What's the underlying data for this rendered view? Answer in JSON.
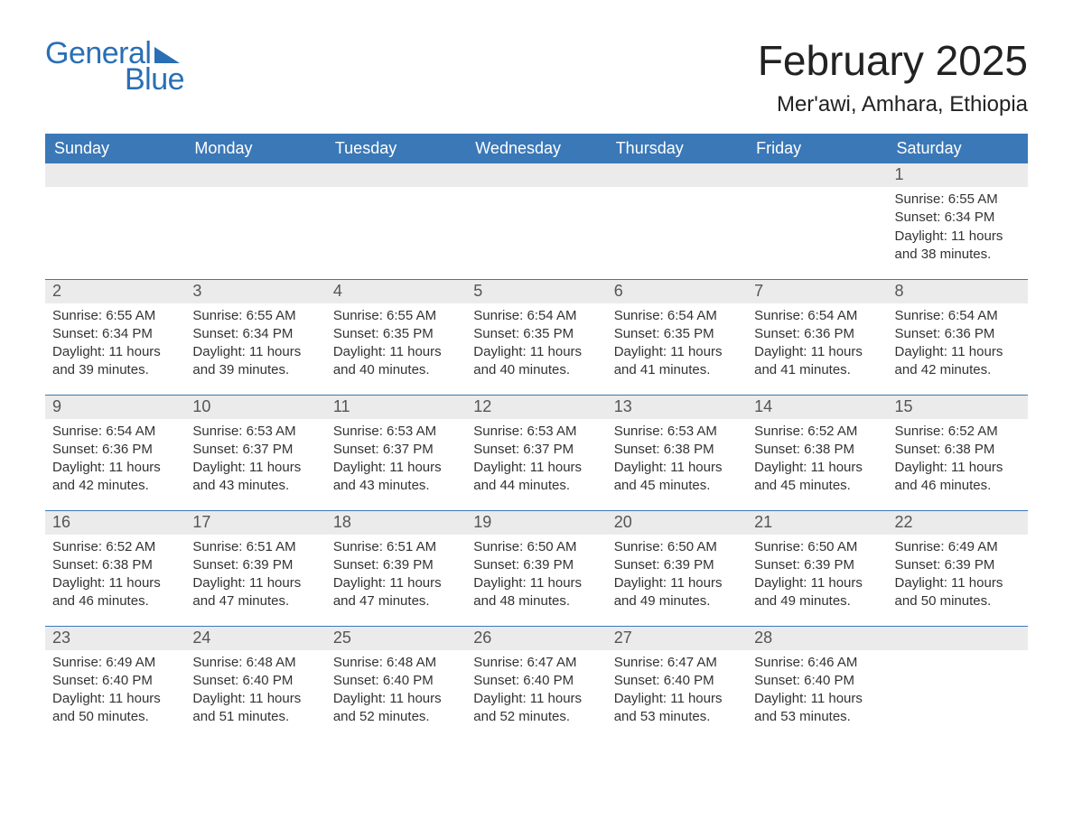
{
  "type": "calendar-table",
  "logo": {
    "text1": "General",
    "text2": "Blue",
    "color": "#2a6fb5"
  },
  "title": "February 2025",
  "location": "Mer'awi, Amhara, Ethiopia",
  "colors": {
    "header_bg": "#3a78b8",
    "header_text": "#ffffff",
    "daynum_bg": "#ebebeb",
    "daynum_text": "#555555",
    "body_text": "#333333",
    "row_divider": "#3a78b8",
    "page_bg": "#ffffff"
  },
  "fonts": {
    "title_size_pt": 34,
    "location_size_pt": 18,
    "header_size_pt": 14,
    "daynum_size_pt": 14,
    "body_size_pt": 11
  },
  "columns": [
    "Sunday",
    "Monday",
    "Tuesday",
    "Wednesday",
    "Thursday",
    "Friday",
    "Saturday"
  ],
  "weeks": [
    [
      null,
      null,
      null,
      null,
      null,
      null,
      {
        "n": "1",
        "sr": "Sunrise: 6:55 AM",
        "ss": "Sunset: 6:34 PM",
        "dl": "Daylight: 11 hours and 38 minutes."
      }
    ],
    [
      {
        "n": "2",
        "sr": "Sunrise: 6:55 AM",
        "ss": "Sunset: 6:34 PM",
        "dl": "Daylight: 11 hours and 39 minutes."
      },
      {
        "n": "3",
        "sr": "Sunrise: 6:55 AM",
        "ss": "Sunset: 6:34 PM",
        "dl": "Daylight: 11 hours and 39 minutes."
      },
      {
        "n": "4",
        "sr": "Sunrise: 6:55 AM",
        "ss": "Sunset: 6:35 PM",
        "dl": "Daylight: 11 hours and 40 minutes."
      },
      {
        "n": "5",
        "sr": "Sunrise: 6:54 AM",
        "ss": "Sunset: 6:35 PM",
        "dl": "Daylight: 11 hours and 40 minutes."
      },
      {
        "n": "6",
        "sr": "Sunrise: 6:54 AM",
        "ss": "Sunset: 6:35 PM",
        "dl": "Daylight: 11 hours and 41 minutes."
      },
      {
        "n": "7",
        "sr": "Sunrise: 6:54 AM",
        "ss": "Sunset: 6:36 PM",
        "dl": "Daylight: 11 hours and 41 minutes."
      },
      {
        "n": "8",
        "sr": "Sunrise: 6:54 AM",
        "ss": "Sunset: 6:36 PM",
        "dl": "Daylight: 11 hours and 42 minutes."
      }
    ],
    [
      {
        "n": "9",
        "sr": "Sunrise: 6:54 AM",
        "ss": "Sunset: 6:36 PM",
        "dl": "Daylight: 11 hours and 42 minutes."
      },
      {
        "n": "10",
        "sr": "Sunrise: 6:53 AM",
        "ss": "Sunset: 6:37 PM",
        "dl": "Daylight: 11 hours and 43 minutes."
      },
      {
        "n": "11",
        "sr": "Sunrise: 6:53 AM",
        "ss": "Sunset: 6:37 PM",
        "dl": "Daylight: 11 hours and 43 minutes."
      },
      {
        "n": "12",
        "sr": "Sunrise: 6:53 AM",
        "ss": "Sunset: 6:37 PM",
        "dl": "Daylight: 11 hours and 44 minutes."
      },
      {
        "n": "13",
        "sr": "Sunrise: 6:53 AM",
        "ss": "Sunset: 6:38 PM",
        "dl": "Daylight: 11 hours and 45 minutes."
      },
      {
        "n": "14",
        "sr": "Sunrise: 6:52 AM",
        "ss": "Sunset: 6:38 PM",
        "dl": "Daylight: 11 hours and 45 minutes."
      },
      {
        "n": "15",
        "sr": "Sunrise: 6:52 AM",
        "ss": "Sunset: 6:38 PM",
        "dl": "Daylight: 11 hours and 46 minutes."
      }
    ],
    [
      {
        "n": "16",
        "sr": "Sunrise: 6:52 AM",
        "ss": "Sunset: 6:38 PM",
        "dl": "Daylight: 11 hours and 46 minutes."
      },
      {
        "n": "17",
        "sr": "Sunrise: 6:51 AM",
        "ss": "Sunset: 6:39 PM",
        "dl": "Daylight: 11 hours and 47 minutes."
      },
      {
        "n": "18",
        "sr": "Sunrise: 6:51 AM",
        "ss": "Sunset: 6:39 PM",
        "dl": "Daylight: 11 hours and 47 minutes."
      },
      {
        "n": "19",
        "sr": "Sunrise: 6:50 AM",
        "ss": "Sunset: 6:39 PM",
        "dl": "Daylight: 11 hours and 48 minutes."
      },
      {
        "n": "20",
        "sr": "Sunrise: 6:50 AM",
        "ss": "Sunset: 6:39 PM",
        "dl": "Daylight: 11 hours and 49 minutes."
      },
      {
        "n": "21",
        "sr": "Sunrise: 6:50 AM",
        "ss": "Sunset: 6:39 PM",
        "dl": "Daylight: 11 hours and 49 minutes."
      },
      {
        "n": "22",
        "sr": "Sunrise: 6:49 AM",
        "ss": "Sunset: 6:39 PM",
        "dl": "Daylight: 11 hours and 50 minutes."
      }
    ],
    [
      {
        "n": "23",
        "sr": "Sunrise: 6:49 AM",
        "ss": "Sunset: 6:40 PM",
        "dl": "Daylight: 11 hours and 50 minutes."
      },
      {
        "n": "24",
        "sr": "Sunrise: 6:48 AM",
        "ss": "Sunset: 6:40 PM",
        "dl": "Daylight: 11 hours and 51 minutes."
      },
      {
        "n": "25",
        "sr": "Sunrise: 6:48 AM",
        "ss": "Sunset: 6:40 PM",
        "dl": "Daylight: 11 hours and 52 minutes."
      },
      {
        "n": "26",
        "sr": "Sunrise: 6:47 AM",
        "ss": "Sunset: 6:40 PM",
        "dl": "Daylight: 11 hours and 52 minutes."
      },
      {
        "n": "27",
        "sr": "Sunrise: 6:47 AM",
        "ss": "Sunset: 6:40 PM",
        "dl": "Daylight: 11 hours and 53 minutes."
      },
      {
        "n": "28",
        "sr": "Sunrise: 6:46 AM",
        "ss": "Sunset: 6:40 PM",
        "dl": "Daylight: 11 hours and 53 minutes."
      },
      null
    ]
  ]
}
